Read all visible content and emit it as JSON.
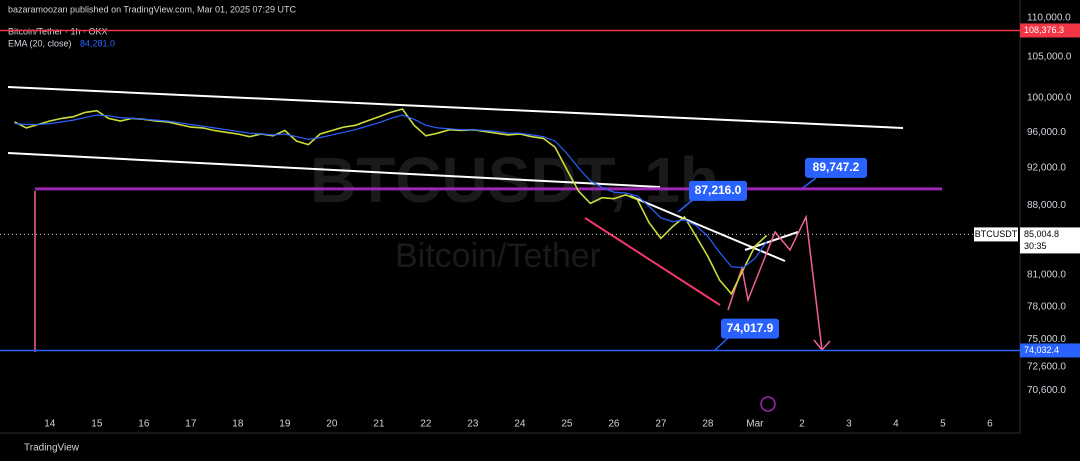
{
  "header": {
    "publisher": "bazaramoozan published on TradingView.com, Mar 01, 2025 07:29 UTC",
    "brand": "TradingView"
  },
  "chart_data": {
    "type": "line",
    "title": "Bitcoin/Tether · 1h · OKX",
    "watermark": "BTCUSDT, 1h",
    "watermark_subtitle": "Bitcoin/Tether",
    "log_scale": true,
    "x": [
      13.25,
      13.5,
      13.75,
      14,
      14.25,
      14.5,
      14.75,
      15,
      15.25,
      15.5,
      15.75,
      16,
      16.25,
      16.5,
      16.75,
      17,
      17.25,
      17.5,
      17.75,
      18,
      18.25,
      18.5,
      18.75,
      19,
      19.25,
      19.5,
      19.75,
      20,
      20.25,
      20.5,
      20.75,
      21,
      21.25,
      21.5,
      21.75,
      22,
      22.25,
      22.5,
      22.75,
      23,
      23.25,
      23.5,
      23.75,
      24,
      24.25,
      24.5,
      24.75,
      25,
      25.25,
      25.5,
      25.75,
      26,
      26.25,
      26.5,
      26.75,
      27,
      27.25,
      27.5,
      27.75,
      28,
      28.25,
      28.5,
      28.75,
      29,
      29.25
    ],
    "series": [
      {
        "name": "Bitcoin/Tether",
        "color": "#cddc39",
        "values": [
          97200,
          96500,
          96900,
          97300,
          97600,
          97800,
          98300,
          98500,
          97600,
          97300,
          97600,
          97500,
          97300,
          97200,
          96900,
          96600,
          96500,
          96200,
          96000,
          95800,
          95500,
          95800,
          95600,
          96200,
          95000,
          94600,
          95800,
          96200,
          96600,
          96800,
          97300,
          97800,
          98300,
          98700,
          96800,
          95600,
          95900,
          96300,
          96200,
          96300,
          96100,
          95900,
          95700,
          95800,
          95500,
          95300,
          94300,
          91800,
          89500,
          88200,
          88800,
          88700,
          89100,
          88600,
          86200,
          84600,
          85800,
          86800,
          84800,
          82800,
          80500,
          79200,
          81500,
          83800,
          84900
        ]
      },
      {
        "name": "EMA (20, close)",
        "color": "#2962ff",
        "last_value_label": "84,281.0",
        "values": [
          97000,
          96900,
          96900,
          97000,
          97200,
          97400,
          97700,
          98000,
          97900,
          97700,
          97600,
          97500,
          97400,
          97300,
          97100,
          96900,
          96700,
          96500,
          96300,
          96100,
          95900,
          95800,
          95700,
          95800,
          95500,
          95200,
          95400,
          95700,
          96000,
          96300,
          96700,
          97100,
          97600,
          98000,
          97500,
          96800,
          96500,
          96400,
          96300,
          96300,
          96200,
          96100,
          95900,
          95900,
          95700,
          95500,
          95000,
          93600,
          92000,
          90600,
          89900,
          89400,
          89300,
          89000,
          87900,
          86700,
          86300,
          86500,
          85900,
          84800,
          83200,
          81800,
          81700,
          82600,
          84281
        ]
      }
    ],
    "xlim": [
      12.94,
      34.64
    ],
    "xticks": [
      14,
      15,
      16,
      17,
      18,
      19,
      20,
      21,
      22,
      23,
      24,
      25,
      26,
      27,
      28,
      {
        "value": 29,
        "label": "Mar"
      },
      {
        "value": 30,
        "label": "2"
      },
      {
        "value": 31,
        "label": "3"
      },
      {
        "value": 32,
        "label": "4"
      },
      {
        "value": 33,
        "label": "5"
      },
      {
        "value": 34,
        "label": "6"
      }
    ],
    "ylim": [
      67500,
      110000
    ],
    "yticks": [
      {
        "value": 110000,
        "label": "110,000.0"
      },
      {
        "value": 105000,
        "label": "105,000.0"
      },
      {
        "value": 100000,
        "label": "100,000.0"
      },
      {
        "value": 96000,
        "label": "96,000.0"
      },
      {
        "value": 92000,
        "label": "92,000.0"
      },
      {
        "value": 88000,
        "label": "88,000.0"
      },
      {
        "value": 81000,
        "label": "81,000.0"
      },
      {
        "value": 78000,
        "label": "78,000.0"
      },
      {
        "value": 75000,
        "label": "75,000.0"
      },
      {
        "value": 72600,
        "label": "72,600.0"
      },
      {
        "value": 70600,
        "label": "70,600.0"
      }
    ],
    "levels": [
      {
        "value": 108376.3,
        "label": "108,376.3",
        "color": "#f23645",
        "badge": true
      },
      {
        "value": 89747.2,
        "label": "89,747.2",
        "color": "#9c27b0",
        "badge": false
      },
      {
        "value": 74032.4,
        "label": "74,032.4",
        "color": "#2962ff",
        "badge": true
      }
    ],
    "current": {
      "symbol": "BTCUSDT",
      "value": 85004.8,
      "label": "85,004.8",
      "countdown": "30:35"
    },
    "annotations": [
      {
        "value": 87216.0,
        "label": "87,216.0"
      },
      {
        "value": 74017.9,
        "label": "74,017.9"
      }
    ]
  }
}
